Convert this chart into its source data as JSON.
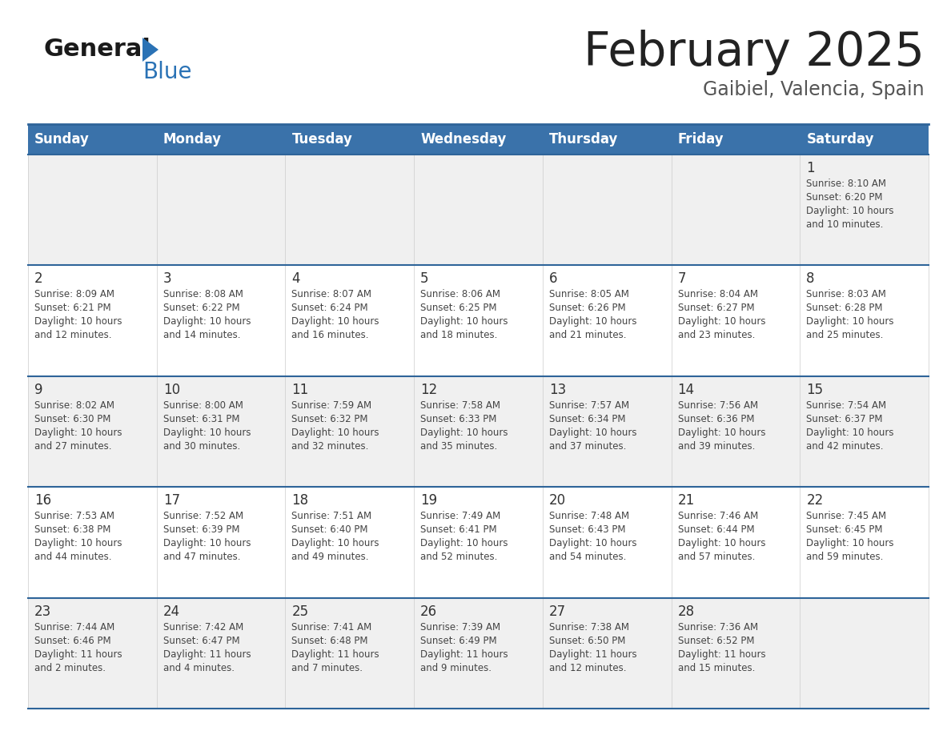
{
  "title": "February 2025",
  "subtitle": "Gaibiel, Valencia, Spain",
  "header_bg": "#3a72aa",
  "header_text": "#ffffff",
  "row_bg_light": "#f0f0f0",
  "row_bg_white": "#ffffff",
  "day_headers": [
    "Sunday",
    "Monday",
    "Tuesday",
    "Wednesday",
    "Thursday",
    "Friday",
    "Saturday"
  ],
  "header_line_color": "#2e6499",
  "title_color": "#222222",
  "subtitle_color": "#555555",
  "day_number_color": "#333333",
  "cell_text_color": "#444444",
  "separator_color": "#2e6499",
  "days": [
    {
      "day": 1,
      "col": 6,
      "row": 0,
      "sunrise": "8:10 AM",
      "sunset": "6:20 PM",
      "daylight_hours": 10,
      "daylight_minutes": 10
    },
    {
      "day": 2,
      "col": 0,
      "row": 1,
      "sunrise": "8:09 AM",
      "sunset": "6:21 PM",
      "daylight_hours": 10,
      "daylight_minutes": 12
    },
    {
      "day": 3,
      "col": 1,
      "row": 1,
      "sunrise": "8:08 AM",
      "sunset": "6:22 PM",
      "daylight_hours": 10,
      "daylight_minutes": 14
    },
    {
      "day": 4,
      "col": 2,
      "row": 1,
      "sunrise": "8:07 AM",
      "sunset": "6:24 PM",
      "daylight_hours": 10,
      "daylight_minutes": 16
    },
    {
      "day": 5,
      "col": 3,
      "row": 1,
      "sunrise": "8:06 AM",
      "sunset": "6:25 PM",
      "daylight_hours": 10,
      "daylight_minutes": 18
    },
    {
      "day": 6,
      "col": 4,
      "row": 1,
      "sunrise": "8:05 AM",
      "sunset": "6:26 PM",
      "daylight_hours": 10,
      "daylight_minutes": 21
    },
    {
      "day": 7,
      "col": 5,
      "row": 1,
      "sunrise": "8:04 AM",
      "sunset": "6:27 PM",
      "daylight_hours": 10,
      "daylight_minutes": 23
    },
    {
      "day": 8,
      "col": 6,
      "row": 1,
      "sunrise": "8:03 AM",
      "sunset": "6:28 PM",
      "daylight_hours": 10,
      "daylight_minutes": 25
    },
    {
      "day": 9,
      "col": 0,
      "row": 2,
      "sunrise": "8:02 AM",
      "sunset": "6:30 PM",
      "daylight_hours": 10,
      "daylight_minutes": 27
    },
    {
      "day": 10,
      "col": 1,
      "row": 2,
      "sunrise": "8:00 AM",
      "sunset": "6:31 PM",
      "daylight_hours": 10,
      "daylight_minutes": 30
    },
    {
      "day": 11,
      "col": 2,
      "row": 2,
      "sunrise": "7:59 AM",
      "sunset": "6:32 PM",
      "daylight_hours": 10,
      "daylight_minutes": 32
    },
    {
      "day": 12,
      "col": 3,
      "row": 2,
      "sunrise": "7:58 AM",
      "sunset": "6:33 PM",
      "daylight_hours": 10,
      "daylight_minutes": 35
    },
    {
      "day": 13,
      "col": 4,
      "row": 2,
      "sunrise": "7:57 AM",
      "sunset": "6:34 PM",
      "daylight_hours": 10,
      "daylight_minutes": 37
    },
    {
      "day": 14,
      "col": 5,
      "row": 2,
      "sunrise": "7:56 AM",
      "sunset": "6:36 PM",
      "daylight_hours": 10,
      "daylight_minutes": 39
    },
    {
      "day": 15,
      "col": 6,
      "row": 2,
      "sunrise": "7:54 AM",
      "sunset": "6:37 PM",
      "daylight_hours": 10,
      "daylight_minutes": 42
    },
    {
      "day": 16,
      "col": 0,
      "row": 3,
      "sunrise": "7:53 AM",
      "sunset": "6:38 PM",
      "daylight_hours": 10,
      "daylight_minutes": 44
    },
    {
      "day": 17,
      "col": 1,
      "row": 3,
      "sunrise": "7:52 AM",
      "sunset": "6:39 PM",
      "daylight_hours": 10,
      "daylight_minutes": 47
    },
    {
      "day": 18,
      "col": 2,
      "row": 3,
      "sunrise": "7:51 AM",
      "sunset": "6:40 PM",
      "daylight_hours": 10,
      "daylight_minutes": 49
    },
    {
      "day": 19,
      "col": 3,
      "row": 3,
      "sunrise": "7:49 AM",
      "sunset": "6:41 PM",
      "daylight_hours": 10,
      "daylight_minutes": 52
    },
    {
      "day": 20,
      "col": 4,
      "row": 3,
      "sunrise": "7:48 AM",
      "sunset": "6:43 PM",
      "daylight_hours": 10,
      "daylight_minutes": 54
    },
    {
      "day": 21,
      "col": 5,
      "row": 3,
      "sunrise": "7:46 AM",
      "sunset": "6:44 PM",
      "daylight_hours": 10,
      "daylight_minutes": 57
    },
    {
      "day": 22,
      "col": 6,
      "row": 3,
      "sunrise": "7:45 AM",
      "sunset": "6:45 PM",
      "daylight_hours": 10,
      "daylight_minutes": 59
    },
    {
      "day": 23,
      "col": 0,
      "row": 4,
      "sunrise": "7:44 AM",
      "sunset": "6:46 PM",
      "daylight_hours": 11,
      "daylight_minutes": 2
    },
    {
      "day": 24,
      "col": 1,
      "row": 4,
      "sunrise": "7:42 AM",
      "sunset": "6:47 PM",
      "daylight_hours": 11,
      "daylight_minutes": 4
    },
    {
      "day": 25,
      "col": 2,
      "row": 4,
      "sunrise": "7:41 AM",
      "sunset": "6:48 PM",
      "daylight_hours": 11,
      "daylight_minutes": 7
    },
    {
      "day": 26,
      "col": 3,
      "row": 4,
      "sunrise": "7:39 AM",
      "sunset": "6:49 PM",
      "daylight_hours": 11,
      "daylight_minutes": 9
    },
    {
      "day": 27,
      "col": 4,
      "row": 4,
      "sunrise": "7:38 AM",
      "sunset": "6:50 PM",
      "daylight_hours": 11,
      "daylight_minutes": 12
    },
    {
      "day": 28,
      "col": 5,
      "row": 4,
      "sunrise": "7:36 AM",
      "sunset": "6:52 PM",
      "daylight_hours": 11,
      "daylight_minutes": 15
    }
  ]
}
